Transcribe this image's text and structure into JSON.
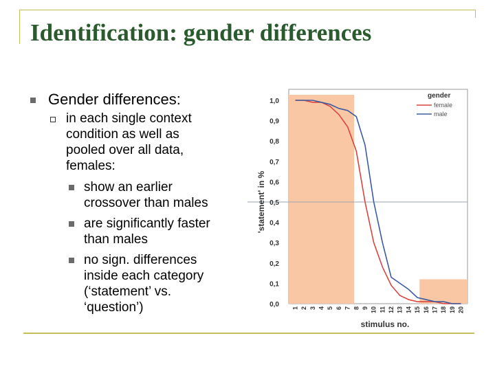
{
  "slide": {
    "title": "Identification: gender differences",
    "bullet1": "Gender differences:",
    "sub1_lines": [
      "in each single context",
      "condition as well as",
      "pooled over all data,",
      "females:"
    ],
    "items": [
      {
        "lines": [
          "show an earlier",
          "crossover than males"
        ]
      },
      {
        "lines": [
          "are significantly faster",
          "than males"
        ]
      },
      {
        "lines": [
          "no sign. differences",
          "inside each category",
          "(‘statement’ vs.",
          "‘question’)"
        ]
      }
    ]
  },
  "colors": {
    "title": "#2b5a2e",
    "frame": "#c8bd5a",
    "shade": "#f9c7a4",
    "female": "#d9443f",
    "male": "#3a5ba3"
  },
  "chart_data": {
    "type": "line",
    "xlabel": "stimulus no.",
    "ylabel": "'statement' in %",
    "legend_title": "gender",
    "legend_position": "top-right",
    "x": [
      1,
      2,
      3,
      4,
      5,
      6,
      7,
      8,
      9,
      10,
      11,
      12,
      13,
      14,
      15,
      16,
      17,
      18,
      19,
      20
    ],
    "ytick_labels": [
      "0,0",
      "0,1",
      "0,2",
      "0,3",
      "0,4",
      "0,5",
      "0,6",
      "0,7",
      "0,8",
      "0,9",
      "1,0"
    ],
    "ylim": [
      0,
      1
    ],
    "reference_line_y": 0.5,
    "shaded_ranges": [
      {
        "x_from": 1,
        "x_to": 7,
        "y_top": 1.0
      },
      {
        "x_from": 16,
        "x_to": 20,
        "y_top": 0.12
      }
    ],
    "series": [
      {
        "name": "female",
        "values": [
          1.0,
          1.0,
          0.99,
          0.99,
          0.97,
          0.93,
          0.87,
          0.75,
          0.5,
          0.3,
          0.18,
          0.09,
          0.04,
          0.02,
          0.01,
          0.01,
          0.01,
          0.0,
          0.0,
          0.0
        ]
      },
      {
        "name": "male",
        "values": [
          1.0,
          1.0,
          1.0,
          0.99,
          0.98,
          0.96,
          0.95,
          0.92,
          0.78,
          0.5,
          0.3,
          0.13,
          0.1,
          0.07,
          0.03,
          0.02,
          0.01,
          0.01,
          0.0,
          0.0
        ]
      }
    ]
  }
}
